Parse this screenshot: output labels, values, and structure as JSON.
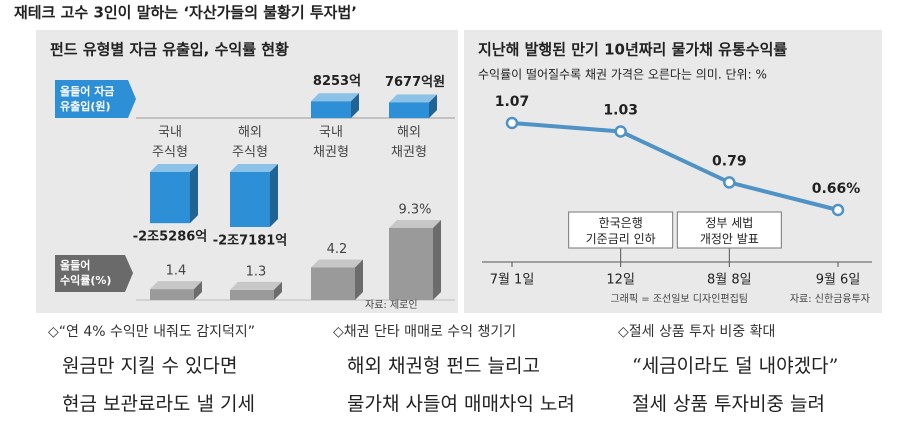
{
  "title": "재테크 고수 3인이 말하는 ‘자산가들의 불황기 투자법’",
  "chart_data": [
    {
      "type": "bar3d",
      "title": "펀드 유형별 자금 유출입, 수익률 현황",
      "categories": [
        "국내\n주식형",
        "해외\n주식형",
        "국내\n채권형",
        "해외\n채권형"
      ],
      "series": [
        {
          "name": "올들어 자금\n유출입(원)",
          "color": "#2d8fd5",
          "values": [
            -25286,
            -27181,
            8253,
            7677
          ],
          "value_labels": [
            "-2조5286억",
            "-2조7181억",
            "8253억",
            "7677억원"
          ]
        },
        {
          "name": "올들어\n수익률(%)",
          "color": "#9a9a9a",
          "values": [
            1.4,
            1.3,
            4.2,
            9.3
          ],
          "value_labels": [
            "1.4",
            "1.3",
            "4.2",
            "9.3%"
          ]
        }
      ],
      "source": "자료: 제로인"
    },
    {
      "type": "line",
      "title": "지난해 발행된 만기 10년짜리 물가채 유통수익률",
      "subtitle": "수익률이 떨어질수록 채권 가격은 오른다는 의미. 단위: %",
      "categories": [
        "7월 1일",
        "12일",
        "8월 8일",
        "9월 6일"
      ],
      "values": [
        1.07,
        1.03,
        0.79,
        0.66
      ],
      "value_labels": [
        "1.07",
        "1.03",
        "0.79",
        "0.66%"
      ],
      "color": "#4f93c6",
      "annotations": [
        "한국은행\n기준금리 인하",
        "정부 세법\n개정안 발표"
      ],
      "credits": [
        "그래픽 = 조선일보 디자인편집팀",
        "자료: 신한금융투자"
      ]
    }
  ],
  "sections": [
    {
      "heading": "◇“연 4% 수익만 내줘도 감지덕지”",
      "lines": [
        "원금만 지킬 수 있다면",
        "현금 보관료라도 낼 기세"
      ]
    },
    {
      "heading": "◇채권 단타 매매로 수익 챙기기",
      "lines": [
        "해외 채권형 펀드 늘리고",
        "물가채 사들여 매매차익 노려"
      ]
    },
    {
      "heading": "◇절세 상품 투자 비중 확대",
      "lines": [
        "“세금이라도 덜 내야겠다”",
        "절세 상품 투자비중 늘려"
      ]
    }
  ]
}
